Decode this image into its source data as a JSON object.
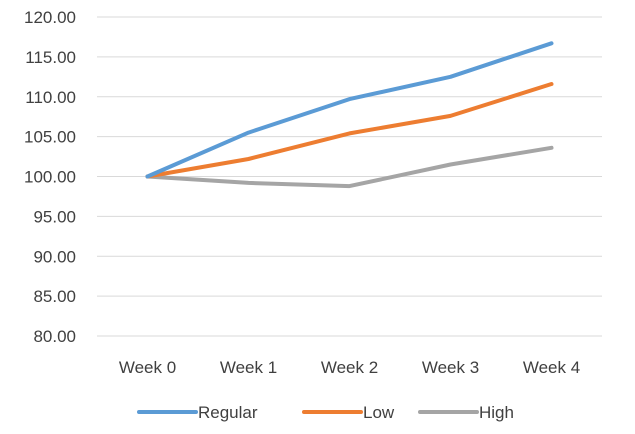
{
  "chart_data": {
    "type": "line",
    "categories": [
      "Week 0",
      "Week 1",
      "Week 2",
      "Week 3",
      "Week 4"
    ],
    "series": [
      {
        "name": "Regular",
        "color": "#5b9bd5",
        "values": [
          100.0,
          105.5,
          109.7,
          112.5,
          116.7
        ]
      },
      {
        "name": "Low",
        "color": "#ed7d31",
        "values": [
          100.0,
          102.2,
          105.4,
          107.6,
          111.6
        ]
      },
      {
        "name": "High",
        "color": "#a5a5a5",
        "values": [
          100.0,
          99.2,
          98.8,
          101.5,
          103.6
        ]
      }
    ],
    "y_ticks": [
      "80.00",
      "85.00",
      "90.00",
      "95.00",
      "100.00",
      "105.00",
      "110.00",
      "115.00",
      "120.00"
    ],
    "ylim": [
      80,
      120
    ],
    "grid": true,
    "legend_position": "bottom",
    "title": "",
    "xlabel": "",
    "ylabel": ""
  }
}
